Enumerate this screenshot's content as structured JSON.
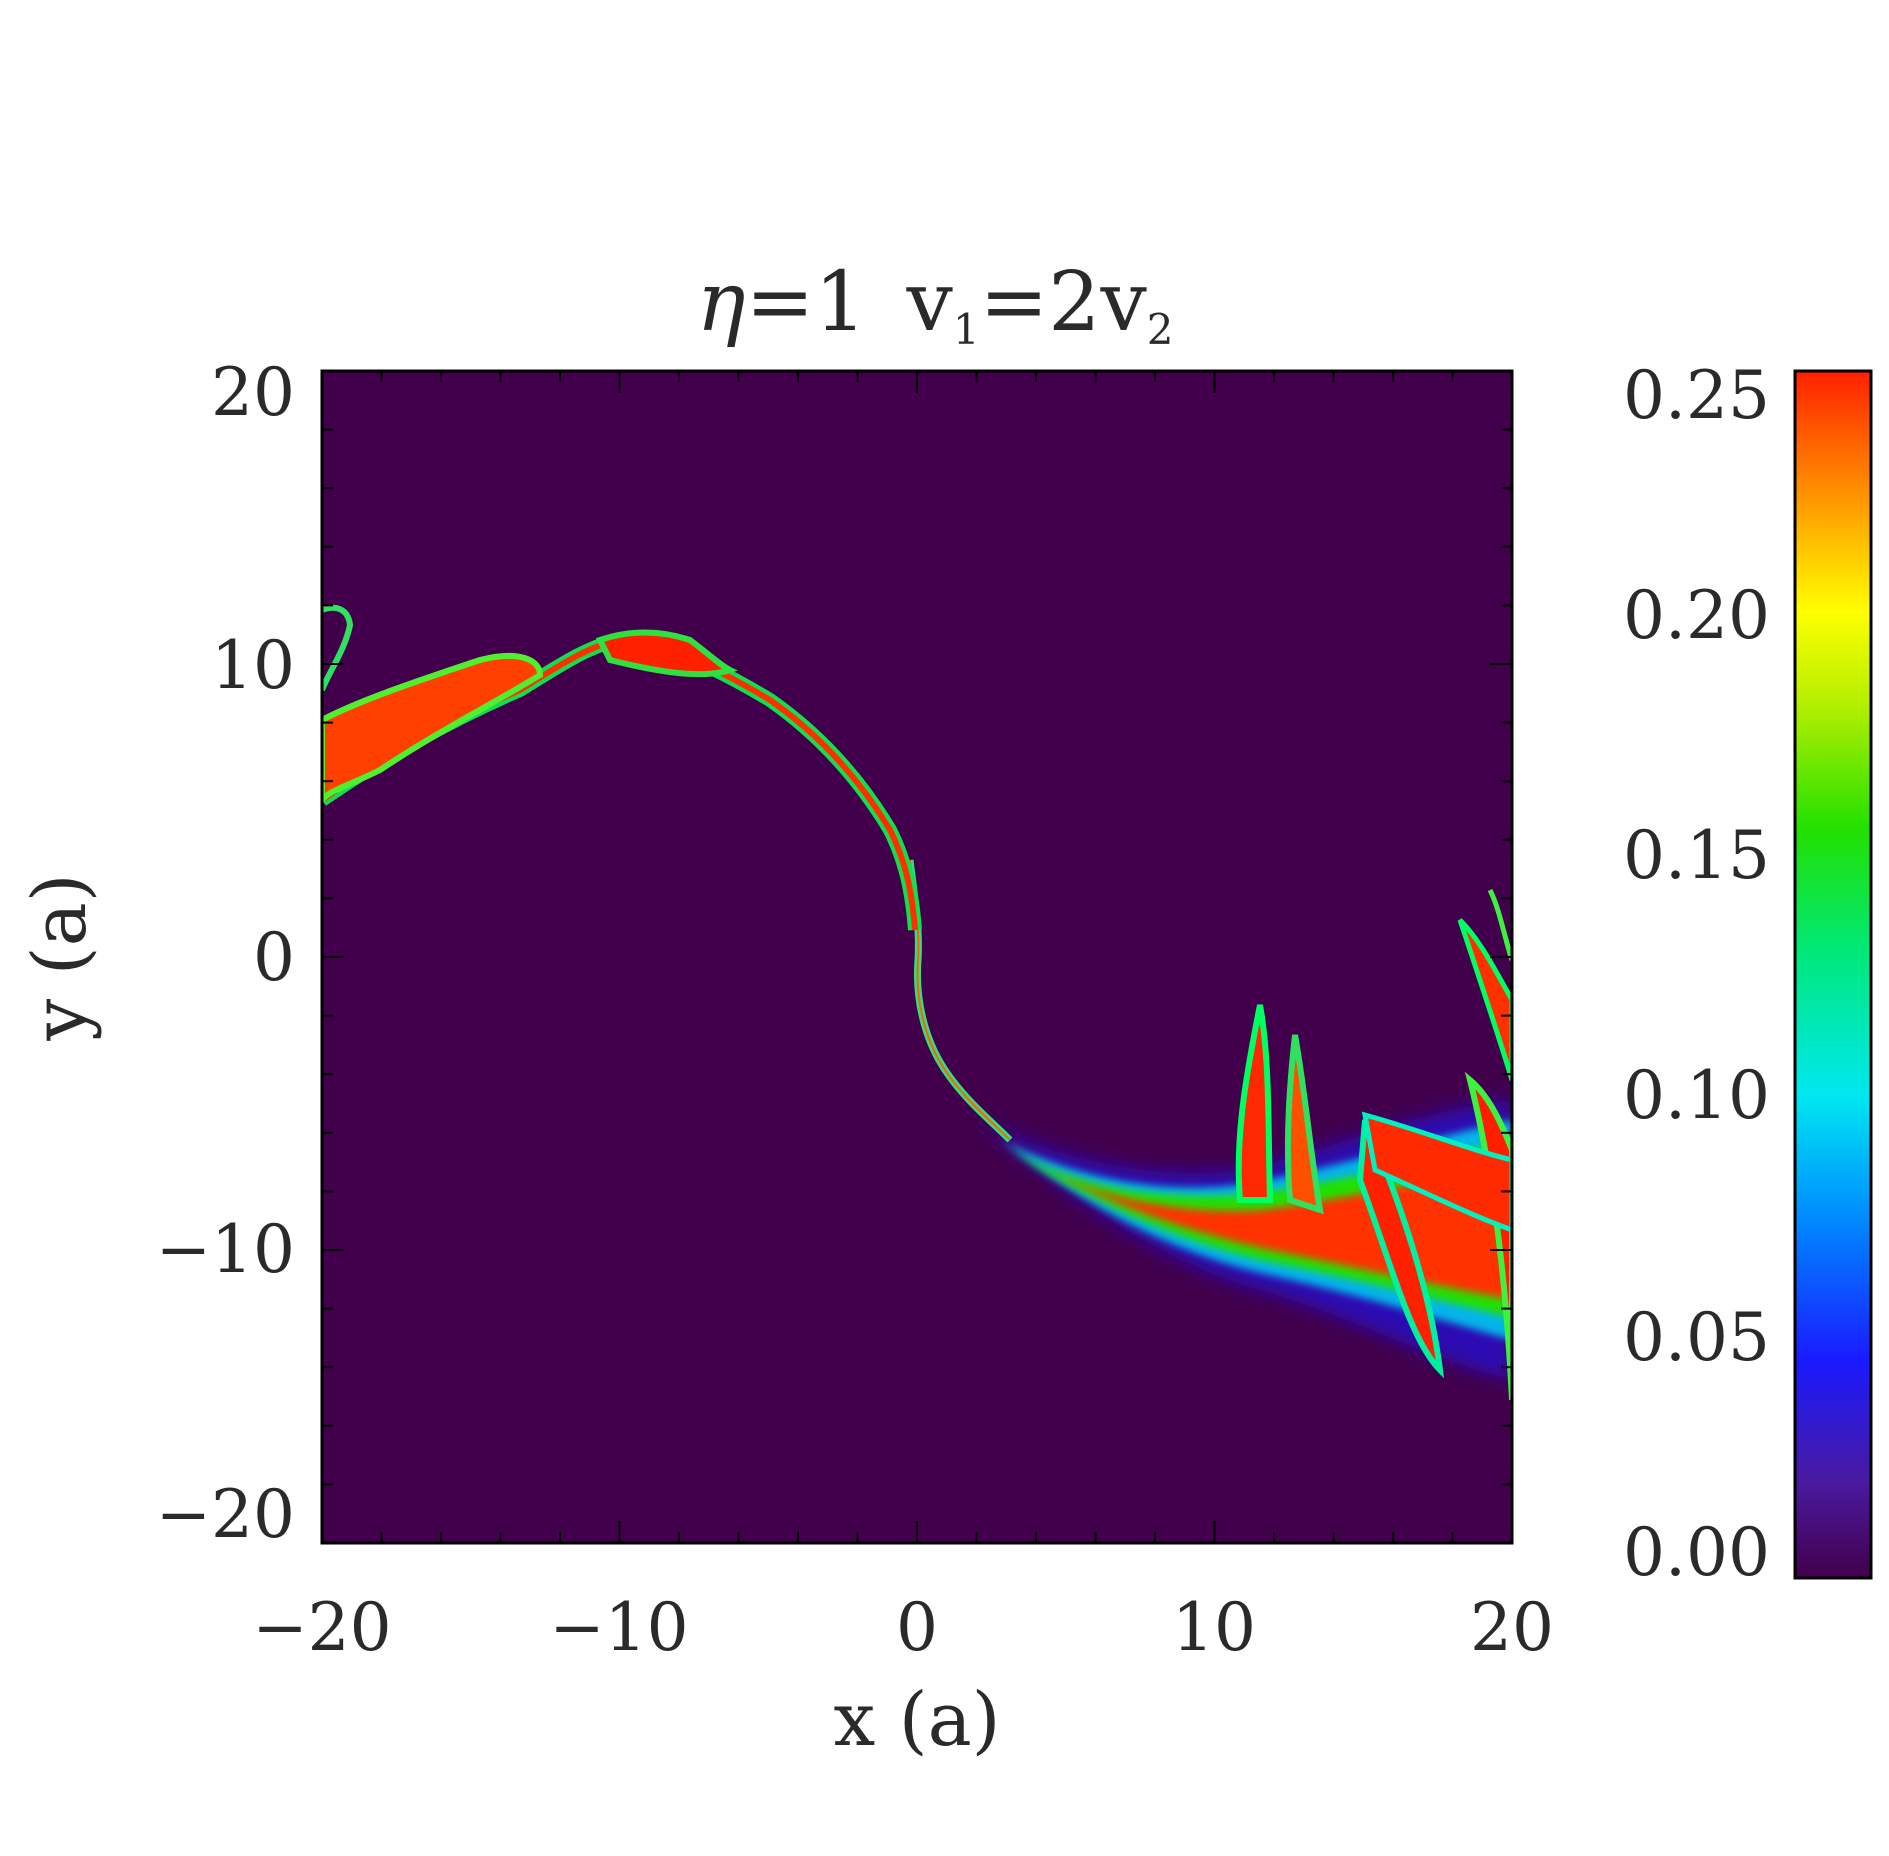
{
  "chart_data": {
    "type": "heatmap",
    "title": {
      "symbol": "η",
      "eq1": "=1",
      "v": "v",
      "sub1": "1",
      "eq2": "=2v",
      "sub2": "2"
    },
    "xlabel": "x (a)",
    "ylabel": "y (a)",
    "xlim": [
      -20,
      20
    ],
    "ylim": [
      -20,
      20
    ],
    "x_ticks": [
      {
        "value": -20,
        "label": "−20"
      },
      {
        "value": -10,
        "label": "−10"
      },
      {
        "value": 0,
        "label": "0"
      },
      {
        "value": 10,
        "label": "10"
      },
      {
        "value": 20,
        "label": "20"
      }
    ],
    "y_ticks": [
      {
        "value": 20,
        "label": "20"
      },
      {
        "value": 10,
        "label": "10"
      },
      {
        "value": 0,
        "label": "0"
      },
      {
        "value": -10,
        "label": "−10"
      },
      {
        "value": -20,
        "label": "−20"
      }
    ],
    "colorbar": {
      "range": [
        0.0,
        0.25
      ],
      "ticks": [
        {
          "value": 0.25,
          "label": "0.25"
        },
        {
          "value": 0.2,
          "label": "0.20"
        },
        {
          "value": 0.15,
          "label": "0.15"
        },
        {
          "value": 0.1,
          "label": "0.10"
        },
        {
          "value": 0.05,
          "label": "0.05"
        },
        {
          "value": 0.0,
          "label": "0.00"
        }
      ],
      "colormap": "rainbow"
    },
    "background_color": "#42004c",
    "mixing_layer": {
      "description_points_upper_arc": [
        [
          -20,
          5.5
        ],
        [
          -18,
          7
        ],
        [
          -15,
          8.5
        ],
        [
          -12,
          10.5
        ],
        [
          -10,
          11
        ],
        [
          -8,
          10.5
        ],
        [
          -6,
          9.5
        ],
        [
          -4,
          8
        ],
        [
          -2,
          6
        ],
        [
          -0.5,
          3.5
        ],
        [
          0,
          0
        ]
      ],
      "description_points_lower_arc": [
        [
          0,
          0
        ],
        [
          0,
          -3
        ],
        [
          1,
          -5
        ],
        [
          2.5,
          -7
        ],
        [
          4,
          -8.5
        ],
        [
          6,
          -9.5
        ],
        [
          8,
          -10
        ],
        [
          10,
          -10.3
        ],
        [
          13,
          -10.5
        ],
        [
          16,
          -11
        ],
        [
          20,
          -12
        ]
      ]
    }
  }
}
